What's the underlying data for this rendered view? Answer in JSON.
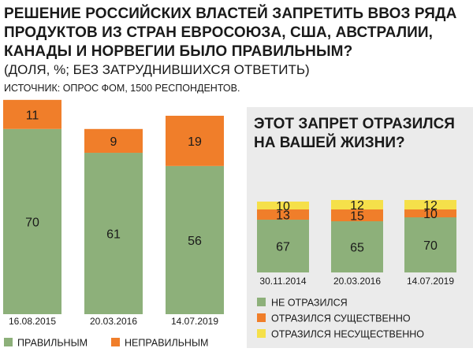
{
  "header": {
    "title": "РЕШЕНИЕ РОССИЙСКИХ ВЛАСТЕЙ ЗАПРЕТИТЬ ВВОЗ РЯДА ПРОДУКТОВ ИЗ СТРАН ЕВРОСОЮЗА, США, АВСТРАЛИИ, КАНАДЫ И НОРВЕГИИ БЫЛО ПРАВИЛЬНЫМ?",
    "subtitle": "(ДОЛЯ, %; БЕЗ ЗАТРУДНИВШИХСЯ ОТВЕТИТЬ)",
    "source": "ИСТОЧНИК: ОПРОС ФОМ, 1500 РЕСПОНДЕНТОВ."
  },
  "chart_data": [
    {
      "type": "bar",
      "stacked": true,
      "title": "",
      "categories": [
        "16.08.2015",
        "20.03.2016",
        "14.07.2019"
      ],
      "series": [
        {
          "name": "ПРАВИЛЬНЫМ",
          "color": "#8db07a",
          "values": [
            70,
            61,
            56
          ]
        },
        {
          "name": "НЕПРАВИЛЬНЫМ",
          "color": "#f07e2a",
          "values": [
            11,
            9,
            19
          ]
        }
      ],
      "legend": "bottom"
    },
    {
      "type": "bar",
      "stacked": true,
      "title": "ЭТОТ ЗАПРЕТ ОТРАЗИЛСЯ НА ВАШЕЙ ЖИЗНИ?",
      "categories": [
        "30.11.2014",
        "20.03.2016",
        "14.07.2019"
      ],
      "series": [
        {
          "name": "НЕ ОТРАЗИЛСЯ",
          "color": "#8db07a",
          "values": [
            67,
            65,
            70
          ]
        },
        {
          "name": "ОТРАЗИЛСЯ СУЩЕСТВЕННО",
          "color": "#f07e2a",
          "values": [
            13,
            15,
            10
          ]
        },
        {
          "name": "ОТРАЗИЛСЯ НЕСУЩЕСТВЕННО",
          "color": "#f5e04a",
          "values": [
            10,
            12,
            12
          ]
        }
      ],
      "legend": "bottom"
    }
  ]
}
